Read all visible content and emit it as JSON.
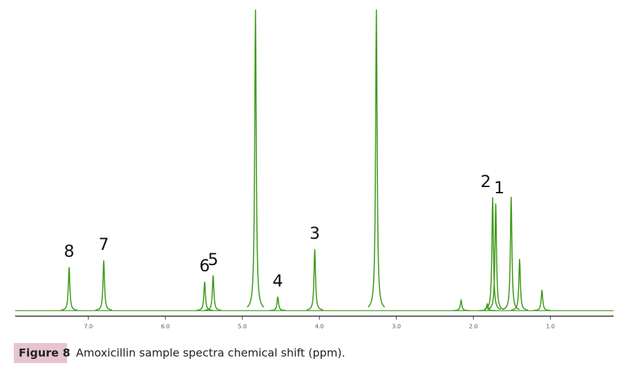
{
  "chart_data": {
    "type": "spectrum",
    "color": "#3f9b1c",
    "xlim": [
      7.95,
      0.18
    ],
    "xticks": [
      {
        "value": 7,
        "label": "7.0"
      },
      {
        "value": 6,
        "label": "6.0"
      },
      {
        "value": 5,
        "label": "5.0"
      },
      {
        "value": 4,
        "label": "4.0"
      },
      {
        "value": 3,
        "label": "3.0"
      },
      {
        "value": 2,
        "label": "2.0"
      },
      {
        "value": 1,
        "label": "1.0"
      }
    ],
    "ylim": [
      0,
      100
    ],
    "peaks": [
      {
        "x": 7.25,
        "height": 14.4,
        "label": "8"
      },
      {
        "x": 6.8,
        "height": 16.7,
        "label": "7"
      },
      {
        "x": 5.49,
        "height": 9.6,
        "label": "6"
      },
      {
        "x": 5.38,
        "height": 11.7,
        "label": "5"
      },
      {
        "x": 4.83,
        "height": 100
      },
      {
        "x": 4.54,
        "height": 4.6,
        "label": "4"
      },
      {
        "x": 4.06,
        "height": 20.4,
        "label": "3"
      },
      {
        "x": 3.26,
        "height": 100
      },
      {
        "x": 2.16,
        "height": 3.4
      },
      {
        "x": 1.82,
        "height": 2.2
      },
      {
        "x": 1.75,
        "height": 37.6,
        "label": "2"
      },
      {
        "x": 1.71,
        "height": 35.6,
        "label": "1"
      },
      {
        "x": 1.51,
        "height": 37.8
      },
      {
        "x": 1.4,
        "height": 17.2
      },
      {
        "x": 1.11,
        "height": 6.9
      }
    ],
    "figure_label": "Figure 8",
    "caption": "Amoxicillin sample spectra chemical shift (ppm)."
  }
}
